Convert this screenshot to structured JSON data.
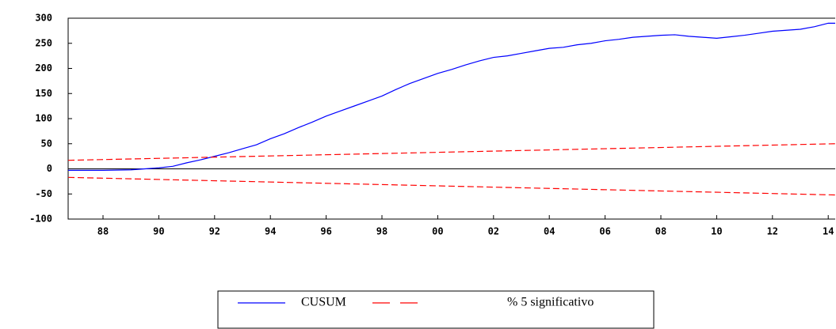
{
  "chart_data": {
    "type": "line",
    "xlim": [
      1986.75,
      2014.25
    ],
    "xticks": [
      {
        "value": 1988,
        "label": "88"
      },
      {
        "value": 1990,
        "label": "90"
      },
      {
        "value": 1992,
        "label": "92"
      },
      {
        "value": 1994,
        "label": "94"
      },
      {
        "value": 1996,
        "label": "96"
      },
      {
        "value": 1998,
        "label": "98"
      },
      {
        "value": 2000,
        "label": "00"
      },
      {
        "value": 2002,
        "label": "02"
      },
      {
        "value": 2004,
        "label": "04"
      },
      {
        "value": 2006,
        "label": "06"
      },
      {
        "value": 2008,
        "label": "08"
      },
      {
        "value": 2010,
        "label": "10"
      },
      {
        "value": 2012,
        "label": "12"
      },
      {
        "value": 2014,
        "label": "14"
      }
    ],
    "ylim": [
      -100,
      300
    ],
    "yticks": [
      -100,
      -50,
      0,
      50,
      100,
      150,
      200,
      250,
      300
    ],
    "series": [
      {
        "name": "CUSUM",
        "color": "#0000ff",
        "line_style": "solid",
        "x": [
          1986.75,
          1988,
          1989,
          1990,
          1990.5,
          1991,
          1991.5,
          1992,
          1992.5,
          1993,
          1993.5,
          1994,
          1994.5,
          1995,
          1995.5,
          1996,
          1996.5,
          1997,
          1997.5,
          1998,
          1998.5,
          1999,
          1999.5,
          2000,
          2000.5,
          2001,
          2001.5,
          2002,
          2002.5,
          2003,
          2003.5,
          2004,
          2004.5,
          2005,
          2005.5,
          2006,
          2006.5,
          2007,
          2007.5,
          2008,
          2008.5,
          2009,
          2009.5,
          2010,
          2010.5,
          2011,
          2011.5,
          2012,
          2012.5,
          2013,
          2013.5,
          2014,
          2014.25
        ],
        "values": [
          -3,
          -3,
          -2,
          2,
          5,
          12,
          18,
          25,
          32,
          40,
          48,
          60,
          70,
          82,
          93,
          105,
          115,
          125,
          135,
          145,
          158,
          170,
          180,
          190,
          198,
          207,
          215,
          222,
          225,
          230,
          235,
          240,
          242,
          247,
          250,
          255,
          258,
          262,
          264,
          266,
          267,
          264,
          262,
          260,
          263,
          266,
          270,
          274,
          276,
          278,
          283,
          290,
          290
        ]
      },
      {
        "name": "% 5 significativo",
        "color": "#ff0000",
        "line_style": "dashed",
        "x": [
          1986.75,
          2014.25
        ],
        "values": [
          17,
          50
        ],
        "lower": [
          -17,
          -52
        ]
      }
    ]
  }
}
